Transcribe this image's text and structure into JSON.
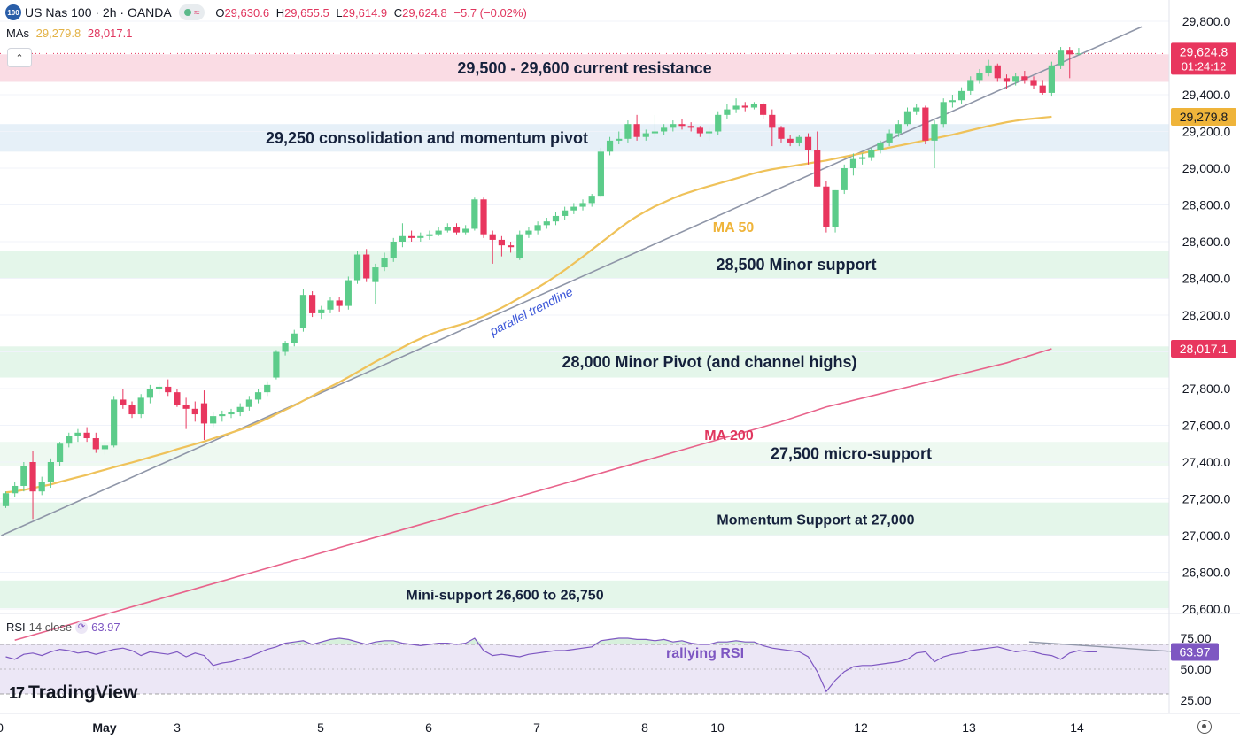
{
  "header": {
    "symbol_badge": "100",
    "title": "US Nas 100 · 2h · OANDA",
    "ohlc": [
      {
        "k": "O",
        "v": "29,630.6"
      },
      {
        "k": "H",
        "v": "29,655.5"
      },
      {
        "k": "L",
        "v": "29,614.9"
      },
      {
        "k": "C",
        "v": "29,624.8"
      }
    ],
    "change": "−5.7 (−0.02%)",
    "mas_label": "MAs",
    "ma50_value": "29,279.8",
    "ma200_value": "28,017.1"
  },
  "colors": {
    "up": "#5ccc8a",
    "down": "#e8365e",
    "ma50": "#efc25a",
    "ma200": "#e8638b",
    "rsi": "#7e57c2",
    "trendline": "#8f96a8"
  },
  "chart_data": {
    "type": "candlestick",
    "symbol": "US Nas 100",
    "interval": "2h",
    "source": "OANDA",
    "price_axis": {
      "min": 26600,
      "max": 29800,
      "ticks": [
        "29,800.0",
        "29,600.0",
        "29,400.0",
        "29,200.0",
        "29,000.0",
        "28,800.0",
        "28,600.0",
        "28,400.0",
        "28,200.0",
        "28,000.0",
        "27,800.0",
        "27,600.0",
        "27,400.0",
        "27,200.0",
        "27,000.0",
        "26,800.0",
        "26,600.0"
      ]
    },
    "time_axis": [
      "0",
      "May",
      "3",
      "5",
      "6",
      "7",
      "8",
      "10",
      "12",
      "13",
      "14"
    ],
    "price_labels": [
      {
        "text": "29,624.8",
        "sub": "01:24:12",
        "price": 29624.8,
        "color": "#e8365e"
      },
      {
        "text": "29,279.8",
        "price": 29279.8,
        "color": "#efb43a"
      },
      {
        "text": "28,017.1",
        "price": 28017.1,
        "color": "#e8365e"
      }
    ],
    "zones": [
      {
        "text": "29,500 - 29,600 current resistance",
        "low": 29470,
        "high": 29620,
        "color": "#fadce4"
      },
      {
        "text": "29,250 consolidation and momentum pivot",
        "low": 29090,
        "high": 29240,
        "color": "#e6f0f8"
      },
      {
        "text": "28,500 Minor support",
        "low": 28400,
        "high": 28550,
        "color": "#e4f6ea"
      },
      {
        "text": "28,000 Minor Pivot (and channel highs)",
        "low": 27860,
        "high": 28030,
        "color": "#e4f6ea"
      },
      {
        "text": "27,500 micro-support",
        "low": 27380,
        "high": 27510,
        "color": "#eef9f1"
      },
      {
        "text": "Momentum Support at 27,000",
        "low": 27000,
        "high": 27180,
        "color": "#e4f6ea"
      },
      {
        "text": "Mini-support 26,600 to 26,750",
        "low": 26605,
        "high": 26755,
        "color": "#e4f6ea"
      }
    ],
    "annotations": {
      "ma50": "MA 50",
      "ma200": "MA 200",
      "trendline": "parallel trendline",
      "rsi": "rallying RSI"
    },
    "candles": [
      {
        "o": 27160,
        "h": 27240,
        "l": 27150,
        "c": 27230
      },
      {
        "o": 27230,
        "h": 27290,
        "l": 27210,
        "c": 27270
      },
      {
        "o": 27270,
        "h": 27400,
        "l": 27240,
        "c": 27380
      },
      {
        "o": 27400,
        "h": 27460,
        "l": 27090,
        "c": 27240
      },
      {
        "o": 27240,
        "h": 27320,
        "l": 27220,
        "c": 27290
      },
      {
        "o": 27290,
        "h": 27420,
        "l": 27260,
        "c": 27400
      },
      {
        "o": 27400,
        "h": 27510,
        "l": 27380,
        "c": 27500
      },
      {
        "o": 27500,
        "h": 27560,
        "l": 27480,
        "c": 27540
      },
      {
        "o": 27540,
        "h": 27580,
        "l": 27510,
        "c": 27560
      },
      {
        "o": 27560,
        "h": 27590,
        "l": 27510,
        "c": 27530
      },
      {
        "o": 27530,
        "h": 27560,
        "l": 27450,
        "c": 27470
      },
      {
        "o": 27470,
        "h": 27520,
        "l": 27440,
        "c": 27490
      },
      {
        "o": 27490,
        "h": 27760,
        "l": 27480,
        "c": 27740
      },
      {
        "o": 27740,
        "h": 27800,
        "l": 27690,
        "c": 27710
      },
      {
        "o": 27710,
        "h": 27730,
        "l": 27640,
        "c": 27660
      },
      {
        "o": 27660,
        "h": 27770,
        "l": 27640,
        "c": 27750
      },
      {
        "o": 27750,
        "h": 27820,
        "l": 27720,
        "c": 27800
      },
      {
        "o": 27800,
        "h": 27830,
        "l": 27770,
        "c": 27810
      },
      {
        "o": 27810,
        "h": 27850,
        "l": 27760,
        "c": 27780
      },
      {
        "o": 27780,
        "h": 27800,
        "l": 27700,
        "c": 27710
      },
      {
        "o": 27710,
        "h": 27750,
        "l": 27580,
        "c": 27690
      },
      {
        "o": 27690,
        "h": 27730,
        "l": 27620,
        "c": 27660
      },
      {
        "o": 27720,
        "h": 27790,
        "l": 27520,
        "c": 27610
      },
      {
        "o": 27610,
        "h": 27670,
        "l": 27590,
        "c": 27650
      },
      {
        "o": 27650,
        "h": 27680,
        "l": 27620,
        "c": 27660
      },
      {
        "o": 27660,
        "h": 27690,
        "l": 27640,
        "c": 27670
      },
      {
        "o": 27670,
        "h": 27720,
        "l": 27650,
        "c": 27700
      },
      {
        "o": 27700,
        "h": 27760,
        "l": 27680,
        "c": 27740
      },
      {
        "o": 27740,
        "h": 27800,
        "l": 27720,
        "c": 27780
      },
      {
        "o": 27780,
        "h": 27840,
        "l": 27760,
        "c": 27820
      },
      {
        "o": 27860,
        "h": 28010,
        "l": 27850,
        "c": 28000
      },
      {
        "o": 28000,
        "h": 28060,
        "l": 27980,
        "c": 28050
      },
      {
        "o": 28050,
        "h": 28120,
        "l": 28030,
        "c": 28100
      },
      {
        "o": 28130,
        "h": 28340,
        "l": 28110,
        "c": 28310
      },
      {
        "o": 28310,
        "h": 28330,
        "l": 28190,
        "c": 28210
      },
      {
        "o": 28210,
        "h": 28250,
        "l": 28180,
        "c": 28230
      },
      {
        "o": 28230,
        "h": 28300,
        "l": 28210,
        "c": 28280
      },
      {
        "o": 28280,
        "h": 28300,
        "l": 28220,
        "c": 28250
      },
      {
        "o": 28250,
        "h": 28410,
        "l": 28230,
        "c": 28390
      },
      {
        "o": 28390,
        "h": 28550,
        "l": 28370,
        "c": 28530
      },
      {
        "o": 28530,
        "h": 28560,
        "l": 28380,
        "c": 28400
      },
      {
        "o": 28380,
        "h": 28480,
        "l": 28260,
        "c": 28460
      },
      {
        "o": 28460,
        "h": 28540,
        "l": 28440,
        "c": 28510
      },
      {
        "o": 28510,
        "h": 28620,
        "l": 28490,
        "c": 28600
      },
      {
        "o": 28600,
        "h": 28700,
        "l": 28570,
        "c": 28630
      },
      {
        "o": 28630,
        "h": 28660,
        "l": 28600,
        "c": 28620
      },
      {
        "o": 28620,
        "h": 28650,
        "l": 28600,
        "c": 28630
      },
      {
        "o": 28630,
        "h": 28660,
        "l": 28610,
        "c": 28640
      },
      {
        "o": 28640,
        "h": 28680,
        "l": 28630,
        "c": 28660
      },
      {
        "o": 28660,
        "h": 28700,
        "l": 28650,
        "c": 28680
      },
      {
        "o": 28680,
        "h": 28700,
        "l": 28640,
        "c": 28650
      },
      {
        "o": 28650,
        "h": 28690,
        "l": 28640,
        "c": 28670
      },
      {
        "o": 28670,
        "h": 28840,
        "l": 28660,
        "c": 28830
      },
      {
        "o": 28830,
        "h": 28840,
        "l": 28620,
        "c": 28640
      },
      {
        "o": 28640,
        "h": 28660,
        "l": 28480,
        "c": 28610
      },
      {
        "o": 28610,
        "h": 28630,
        "l": 28520,
        "c": 28580
      },
      {
        "o": 28580,
        "h": 28600,
        "l": 28540,
        "c": 28570
      },
      {
        "o": 28510,
        "h": 28660,
        "l": 28500,
        "c": 28640
      },
      {
        "o": 28640,
        "h": 28680,
        "l": 28620,
        "c": 28660
      },
      {
        "o": 28660,
        "h": 28710,
        "l": 28640,
        "c": 28690
      },
      {
        "o": 28690,
        "h": 28730,
        "l": 28670,
        "c": 28710
      },
      {
        "o": 28710,
        "h": 28760,
        "l": 28690,
        "c": 28740
      },
      {
        "o": 28740,
        "h": 28790,
        "l": 28720,
        "c": 28770
      },
      {
        "o": 28770,
        "h": 28810,
        "l": 28750,
        "c": 28790
      },
      {
        "o": 28790,
        "h": 28830,
        "l": 28770,
        "c": 28810
      },
      {
        "o": 28810,
        "h": 28860,
        "l": 28790,
        "c": 28850
      },
      {
        "o": 28850,
        "h": 29110,
        "l": 28840,
        "c": 29090
      },
      {
        "o": 29090,
        "h": 29170,
        "l": 29070,
        "c": 29150
      },
      {
        "o": 29150,
        "h": 29200,
        "l": 29130,
        "c": 29160
      },
      {
        "o": 29160,
        "h": 29260,
        "l": 29140,
        "c": 29240
      },
      {
        "o": 29240,
        "h": 29290,
        "l": 29150,
        "c": 29170
      },
      {
        "o": 29170,
        "h": 29210,
        "l": 29150,
        "c": 29190
      },
      {
        "o": 29190,
        "h": 29290,
        "l": 29170,
        "c": 29200
      },
      {
        "o": 29200,
        "h": 29240,
        "l": 29180,
        "c": 29220
      },
      {
        "o": 29220,
        "h": 29260,
        "l": 29200,
        "c": 29240
      },
      {
        "o": 29240,
        "h": 29270,
        "l": 29210,
        "c": 29230
      },
      {
        "o": 29230,
        "h": 29250,
        "l": 29200,
        "c": 29220
      },
      {
        "o": 29220,
        "h": 29230,
        "l": 29170,
        "c": 29190
      },
      {
        "o": 29190,
        "h": 29220,
        "l": 29150,
        "c": 29200
      },
      {
        "o": 29200,
        "h": 29310,
        "l": 29180,
        "c": 29290
      },
      {
        "o": 29290,
        "h": 29350,
        "l": 29270,
        "c": 29320
      },
      {
        "o": 29320,
        "h": 29380,
        "l": 29300,
        "c": 29340
      },
      {
        "o": 29340,
        "h": 29360,
        "l": 29310,
        "c": 29330
      },
      {
        "o": 29330,
        "h": 29360,
        "l": 29320,
        "c": 29350
      },
      {
        "o": 29350,
        "h": 29360,
        "l": 29270,
        "c": 29290
      },
      {
        "o": 29290,
        "h": 29320,
        "l": 29120,
        "c": 29220
      },
      {
        "o": 29220,
        "h": 29230,
        "l": 29140,
        "c": 29160
      },
      {
        "o": 29160,
        "h": 29180,
        "l": 29120,
        "c": 29140
      },
      {
        "o": 29140,
        "h": 29180,
        "l": 29120,
        "c": 29170
      },
      {
        "o": 29170,
        "h": 29190,
        "l": 29020,
        "c": 29100
      },
      {
        "o": 29100,
        "h": 29200,
        "l": 28900,
        "c": 28900
      },
      {
        "o": 28900,
        "h": 28930,
        "l": 28650,
        "c": 28680
      },
      {
        "o": 28680,
        "h": 28880,
        "l": 28650,
        "c": 28880
      },
      {
        "o": 28880,
        "h": 29020,
        "l": 28860,
        "c": 29000
      },
      {
        "o": 29000,
        "h": 29080,
        "l": 28960,
        "c": 29050
      },
      {
        "o": 29050,
        "h": 29080,
        "l": 29020,
        "c": 29060
      },
      {
        "o": 29060,
        "h": 29110,
        "l": 29040,
        "c": 29100
      },
      {
        "o": 29100,
        "h": 29150,
        "l": 29080,
        "c": 29140
      },
      {
        "o": 29140,
        "h": 29210,
        "l": 29120,
        "c": 29190
      },
      {
        "o": 29190,
        "h": 29260,
        "l": 29170,
        "c": 29240
      },
      {
        "o": 29240,
        "h": 29330,
        "l": 29230,
        "c": 29310
      },
      {
        "o": 29310,
        "h": 29350,
        "l": 29290,
        "c": 29330
      },
      {
        "o": 29330,
        "h": 29340,
        "l": 29130,
        "c": 29150
      },
      {
        "o": 29150,
        "h": 29260,
        "l": 29000,
        "c": 29240
      },
      {
        "o": 29240,
        "h": 29380,
        "l": 29220,
        "c": 29360
      },
      {
        "o": 29360,
        "h": 29400,
        "l": 29330,
        "c": 29370
      },
      {
        "o": 29370,
        "h": 29440,
        "l": 29350,
        "c": 29420
      },
      {
        "o": 29420,
        "h": 29500,
        "l": 29400,
        "c": 29480
      },
      {
        "o": 29480,
        "h": 29540,
        "l": 29460,
        "c": 29520
      },
      {
        "o": 29520,
        "h": 29590,
        "l": 29500,
        "c": 29560
      },
      {
        "o": 29560,
        "h": 29570,
        "l": 29470,
        "c": 29490
      },
      {
        "o": 29490,
        "h": 29510,
        "l": 29430,
        "c": 29470
      },
      {
        "o": 29470,
        "h": 29520,
        "l": 29450,
        "c": 29500
      },
      {
        "o": 29500,
        "h": 29530,
        "l": 29460,
        "c": 29480
      },
      {
        "o": 29480,
        "h": 29500,
        "l": 29430,
        "c": 29450
      },
      {
        "o": 29450,
        "h": 29480,
        "l": 29400,
        "c": 29410
      },
      {
        "o": 29410,
        "h": 29580,
        "l": 29390,
        "c": 29560
      },
      {
        "o": 29560,
        "h": 29660,
        "l": 29540,
        "c": 29640
      },
      {
        "o": 29640,
        "h": 29660,
        "l": 29490,
        "c": 29620
      },
      {
        "o": 29620,
        "h": 29655,
        "l": 29615,
        "c": 29625
      }
    ],
    "ma50": [
      27235,
      27240,
      27248,
      27258,
      27268,
      27278,
      27292,
      27305,
      27318,
      27330,
      27345,
      27358,
      27372,
      27385,
      27398,
      27412,
      27426,
      27440,
      27454,
      27470,
      27484,
      27498,
      27512,
      27528,
      27544,
      27560,
      27576,
      27594,
      27614,
      27636,
      27660,
      27684,
      27708,
      27734,
      27760,
      27786,
      27810,
      27835,
      27862,
      27890,
      27918,
      27946,
      27972,
      27998,
      28024,
      28050,
      28072,
      28094,
      28112,
      28128,
      28142,
      28156,
      28174,
      28194,
      28216,
      28240,
      28266,
      28294,
      28322,
      28350,
      28380,
      28412,
      28446,
      28482,
      28518,
      28556,
      28594,
      28632,
      28670,
      28706,
      28738,
      28766,
      28792,
      28814,
      28836,
      28856,
      28872,
      28888,
      28902,
      28916,
      28930,
      28944,
      28958,
      28972,
      28984,
      28994,
      29002,
      29010,
      29018,
      29026,
      29034,
      29042,
      29052,
      29062,
      29072,
      29082,
      29092,
      29102,
      29112,
      29122,
      29132,
      29142,
      29152,
      29162,
      29172,
      29182,
      29194,
      29206,
      29218,
      29230,
      29240,
      29250,
      29258,
      29265,
      29270,
      29275,
      29279.8
    ],
    "ma200": [
      26430,
      26500,
      26570,
      26640,
      26710,
      26780,
      26850,
      26920,
      26990,
      27060,
      27130,
      27200,
      27270,
      27340,
      27410,
      27480,
      27550,
      27620,
      27700,
      27760,
      27820,
      27880,
      27940,
      28017.1
    ],
    "ma200_start_index": 1,
    "ma200_step": 5,
    "trendline": {
      "from": {
        "i": -0.5,
        "p": 27000
      },
      "to": {
        "i": 126,
        "p": 29770
      }
    },
    "rsi": {
      "label": "RSI",
      "length": "14 close",
      "value": "63.97",
      "levels": [
        "75.00",
        "50.00",
        "25.00"
      ],
      "min": 20,
      "max": 80,
      "upper": 70,
      "lower": 30,
      "values": [
        60,
        58,
        62,
        63,
        61,
        64,
        66,
        65,
        63,
        64,
        62,
        64,
        66,
        67,
        65,
        61,
        64,
        63,
        62,
        64,
        60,
        63,
        61,
        53,
        55,
        56,
        58,
        60,
        63,
        66,
        68,
        71,
        72,
        73,
        70,
        72,
        74,
        75,
        74,
        72,
        70,
        72,
        73,
        73,
        71,
        70,
        69,
        70,
        71,
        71,
        70,
        71,
        75,
        65,
        61,
        62,
        61,
        60,
        62,
        63,
        64,
        65,
        65,
        66,
        67,
        68,
        73,
        74,
        75,
        75,
        74,
        74,
        73,
        74,
        72,
        73,
        71,
        70,
        70,
        72,
        72,
        73,
        72,
        72,
        69,
        67,
        66,
        65,
        64,
        60,
        48,
        32,
        41,
        48,
        52,
        53,
        53,
        54,
        55,
        56,
        58,
        63,
        64,
        56,
        60,
        62,
        63,
        65,
        66,
        67,
        68,
        66,
        64,
        65,
        64,
        62,
        61,
        58,
        63,
        65,
        64,
        63.97
      ],
      "divergence": {
        "from": {
          "i": 113.5,
          "v": 72
        },
        "to": {
          "i": 130,
          "v": 64
        }
      }
    }
  }
}
